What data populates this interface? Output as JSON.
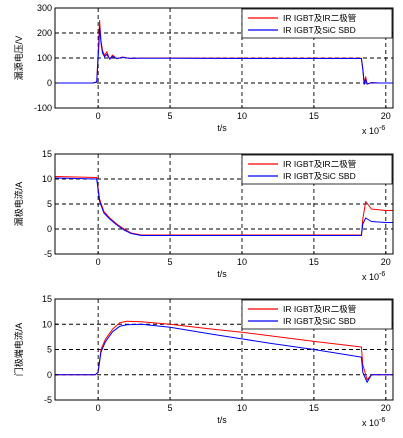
{
  "chart_data": [
    {
      "type": "line",
      "xlabel": "t/s",
      "x_multiplier": "x 10",
      "x_exponent": "-6",
      "ylabel": "漏源电压/V",
      "xlim": [
        -3,
        20.5
      ],
      "ylim": [
        -100,
        300
      ],
      "xticks": [
        0,
        5,
        10,
        15,
        20
      ],
      "yticks": [
        -100,
        0,
        100,
        200,
        300
      ],
      "grid": true,
      "legend_position": "top-right",
      "series": [
        {
          "name": "IR IGBT及IR二极管",
          "color": "#ff0000",
          "x": [
            -3,
            -0.4,
            -0.1,
            0.05,
            0.1,
            0.2,
            0.3,
            0.45,
            0.6,
            0.8,
            1.0,
            1.3,
            1.7,
            2.2,
            3,
            5,
            10,
            15,
            18.3,
            18.4,
            18.5,
            18.6,
            18.7,
            19,
            19.5,
            20.5
          ],
          "y": [
            0,
            0,
            5,
            180,
            250,
            170,
            130,
            110,
            125,
            95,
            112,
            97,
            104,
            98,
            100,
            100,
            99,
            99,
            99,
            60,
            0,
            25,
            -5,
            2,
            0,
            0
          ]
        },
        {
          "name": "IR IGBT及SiC SBD",
          "color": "#0000ff",
          "x": [
            -3,
            -0.4,
            -0.1,
            0.05,
            0.1,
            0.2,
            0.3,
            0.45,
            0.6,
            0.8,
            1.0,
            1.3,
            1.7,
            2.2,
            3,
            5,
            10,
            15,
            18.3,
            18.4,
            18.5,
            18.6,
            18.7,
            19,
            19.5,
            20.5
          ],
          "y": [
            0,
            0,
            3,
            150,
            225,
            160,
            120,
            105,
            115,
            96,
            106,
            98,
            102,
            99,
            99,
            99,
            98,
            98,
            98,
            55,
            -5,
            15,
            -3,
            1,
            0,
            0
          ]
        }
      ]
    },
    {
      "type": "line",
      "xlabel": "t/s",
      "x_multiplier": "x 10",
      "x_exponent": "-6",
      "ylabel": "漏极电流/A",
      "xlim": [
        -3,
        20.5
      ],
      "ylim": [
        -5,
        15
      ],
      "xticks": [
        0,
        5,
        10,
        15,
        20
      ],
      "yticks": [
        -5,
        0,
        5,
        10,
        15
      ],
      "grid": true,
      "legend_position": "top-right",
      "series": [
        {
          "name": "IR IGBT及IR二极管",
          "color": "#ff0000",
          "x": [
            -3,
            -0.1,
            0.1,
            0.4,
            0.8,
            1.3,
            1.8,
            2.3,
            3,
            5,
            10,
            15,
            18.3,
            18.4,
            18.6,
            19,
            20,
            20.5
          ],
          "y": [
            10.5,
            10.3,
            6,
            3.5,
            2.2,
            1,
            0,
            -0.8,
            -1.2,
            -1.2,
            -1.2,
            -1.2,
            -1.2,
            2,
            5.5,
            4,
            3.7,
            3.7
          ]
        },
        {
          "name": "IR IGBT及SiC SBD",
          "color": "#0000ff",
          "x": [
            -3,
            -0.1,
            0.1,
            0.4,
            0.8,
            1.3,
            1.8,
            2.3,
            3,
            5,
            10,
            15,
            18.3,
            18.4,
            18.6,
            19,
            20,
            20.5
          ],
          "y": [
            10.2,
            10,
            5.5,
            3.2,
            2,
            0.8,
            -0.2,
            -0.9,
            -1.3,
            -1.3,
            -1.3,
            -1.3,
            -1.3,
            1,
            2.2,
            1.5,
            1.3,
            1.3
          ]
        }
      ]
    },
    {
      "type": "line",
      "xlabel": "t/s",
      "x_multiplier": "x 10",
      "x_exponent": "-6",
      "ylabel": "门极端电流/A",
      "xlim": [
        -3,
        20.5
      ],
      "ylim": [
        -5,
        15
      ],
      "xticks": [
        0,
        5,
        10,
        15,
        20
      ],
      "yticks": [
        -5,
        0,
        5,
        10,
        15
      ],
      "grid": true,
      "legend_position": "top-right",
      "series": [
        {
          "name": "IR IGBT及IR二极管",
          "color": "#ff0000",
          "x": [
            -3,
            -0.2,
            0,
            0.2,
            0.5,
            1,
            1.5,
            2,
            3,
            5,
            8,
            10,
            12,
            15,
            18.3,
            18.4,
            18.7,
            19,
            20,
            20.5
          ],
          "y": [
            0,
            0,
            0.5,
            5,
            7,
            9,
            10.3,
            10.6,
            10.5,
            10,
            9,
            8.4,
            7.7,
            6.6,
            5.5,
            2,
            -1,
            0,
            0,
            0
          ]
        },
        {
          "name": "IR IGBT及SiC SBD",
          "color": "#0000ff",
          "x": [
            -3,
            -0.2,
            0,
            0.2,
            0.5,
            1,
            1.5,
            2,
            3,
            5,
            8,
            10,
            12,
            15,
            18.3,
            18.4,
            18.7,
            19,
            20,
            20.5
          ],
          "y": [
            0,
            0,
            0.5,
            4.5,
            6.5,
            8.5,
            9.6,
            9.9,
            10,
            9.4,
            8,
            7.1,
            6.2,
            5,
            3.5,
            0.5,
            -1.5,
            0,
            0,
            0
          ]
        }
      ]
    }
  ]
}
